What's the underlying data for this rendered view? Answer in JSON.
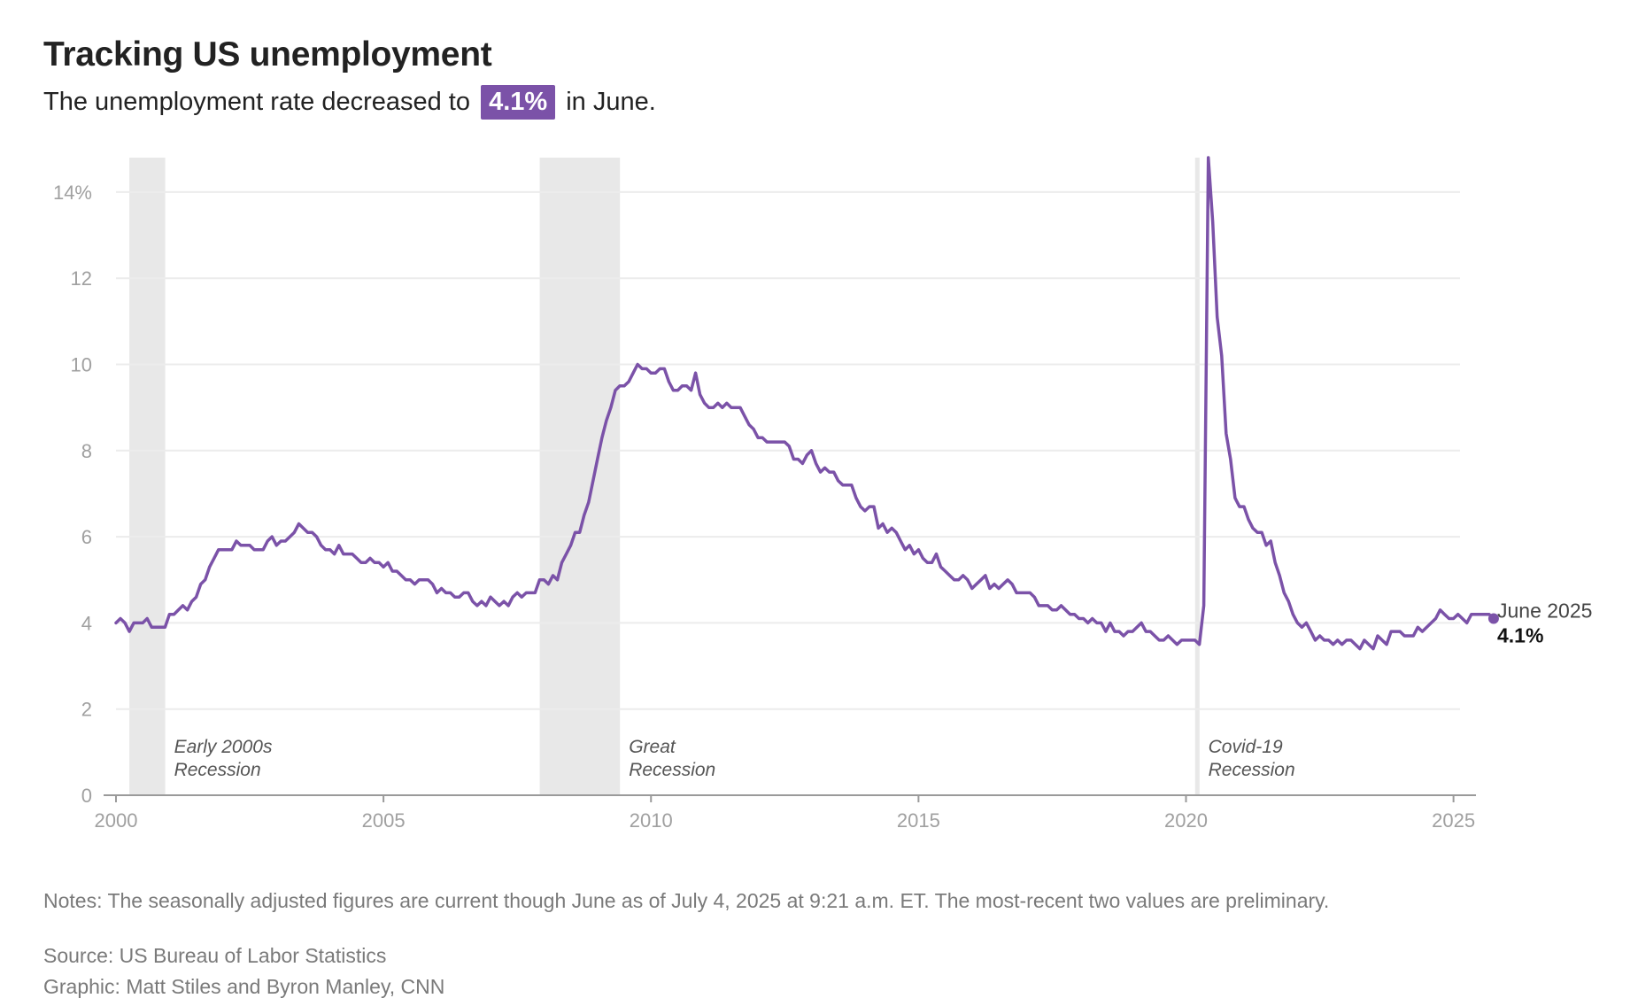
{
  "header": {
    "title": "Tracking US unemployment",
    "subtitle_before": "The unemployment rate decreased to",
    "subtitle_highlight": "4.1%",
    "subtitle_after": "in June."
  },
  "colors": {
    "line": "#7b52a8",
    "highlight": "#7b52a8",
    "recession": "#e8e8e8",
    "grid": "#ececec"
  },
  "chart_data": {
    "type": "line",
    "title": "Tracking US unemployment",
    "xlabel": "",
    "ylabel": "",
    "xlim": [
      2000.0,
      2025.42
    ],
    "ylim": [
      0,
      14.8
    ],
    "y_ticks": [
      0,
      2,
      4,
      6,
      8,
      10,
      12,
      14
    ],
    "y_tick_labels": [
      "0",
      "2",
      "4",
      "6",
      "8",
      "10",
      "12",
      "14%"
    ],
    "x_ticks": [
      2000,
      2005,
      2010,
      2015,
      2020,
      2025
    ],
    "x_tick_labels": [
      "2000",
      "2005",
      "2010",
      "2015",
      "2020",
      "2025"
    ],
    "grid": true,
    "legend": "none",
    "recessions": [
      {
        "start": 2000.25,
        "end": 2000.92,
        "label_line1": "Early 2000s",
        "label_line2": "Recession"
      },
      {
        "start": 2007.92,
        "end": 2009.42,
        "label_line1": "Great",
        "label_line2": "Recession"
      },
      {
        "start": 2020.17,
        "end": 2020.25,
        "label_line1": "Covid-19",
        "label_line2": "Recession"
      }
    ],
    "end_label": {
      "line1": "June 2025",
      "line2": "4.1%"
    },
    "series": [
      {
        "start": 2000.0,
        "step": 0.083333,
        "values": [
          4.0,
          4.1,
          4.0,
          3.8,
          4.0,
          4.0,
          4.0,
          4.1,
          3.9,
          3.9,
          3.9,
          3.9,
          4.2,
          4.2,
          4.3,
          4.4,
          4.3,
          4.5,
          4.6,
          4.9,
          5.0,
          5.3,
          5.5,
          5.7,
          5.7,
          5.7,
          5.7,
          5.9,
          5.8,
          5.8,
          5.8,
          5.7,
          5.7,
          5.7,
          5.9,
          6.0,
          5.8,
          5.9,
          5.9,
          6.0,
          6.1,
          6.3,
          6.2,
          6.1,
          6.1,
          6.0,
          5.8,
          5.7,
          5.7,
          5.6,
          5.8,
          5.6,
          5.6,
          5.6,
          5.5,
          5.4,
          5.4,
          5.5,
          5.4,
          5.4,
          5.3,
          5.4,
          5.2,
          5.2,
          5.1,
          5.0,
          5.0,
          4.9,
          5.0,
          5.0,
          5.0,
          4.9,
          4.7,
          4.8,
          4.7,
          4.7,
          4.6,
          4.6,
          4.7,
          4.7,
          4.5,
          4.4,
          4.5,
          4.4,
          4.6,
          4.5,
          4.4,
          4.5,
          4.4,
          4.6,
          4.7,
          4.6,
          4.7,
          4.7,
          4.7,
          5.0,
          5.0,
          4.9,
          5.1,
          5.0,
          5.4,
          5.6,
          5.8,
          6.1,
          6.1,
          6.5,
          6.8,
          7.3,
          7.8,
          8.3,
          8.7,
          9.0,
          9.4,
          9.5,
          9.5,
          9.6,
          9.8,
          10.0,
          9.9,
          9.9,
          9.8,
          9.8,
          9.9,
          9.9,
          9.6,
          9.4,
          9.4,
          9.5,
          9.5,
          9.4,
          9.8,
          9.3,
          9.1,
          9.0,
          9.0,
          9.1,
          9.0,
          9.1,
          9.0,
          9.0,
          9.0,
          8.8,
          8.6,
          8.5,
          8.3,
          8.3,
          8.2,
          8.2,
          8.2,
          8.2,
          8.2,
          8.1,
          7.8,
          7.8,
          7.7,
          7.9,
          8.0,
          7.7,
          7.5,
          7.6,
          7.5,
          7.5,
          7.3,
          7.2,
          7.2,
          7.2,
          6.9,
          6.7,
          6.6,
          6.7,
          6.7,
          6.2,
          6.3,
          6.1,
          6.2,
          6.1,
          5.9,
          5.7,
          5.8,
          5.6,
          5.7,
          5.5,
          5.4,
          5.4,
          5.6,
          5.3,
          5.2,
          5.1,
          5.0,
          5.0,
          5.1,
          5.0,
          4.8,
          4.9,
          5.0,
          5.1,
          4.8,
          4.9,
          4.8,
          4.9,
          5.0,
          4.9,
          4.7,
          4.7,
          4.7,
          4.7,
          4.6,
          4.4,
          4.4,
          4.4,
          4.3,
          4.3,
          4.4,
          4.3,
          4.2,
          4.2,
          4.1,
          4.1,
          4.0,
          4.1,
          4.0,
          4.0,
          3.8,
          4.0,
          3.8,
          3.8,
          3.7,
          3.8,
          3.8,
          3.9,
          4.0,
          3.8,
          3.8,
          3.7,
          3.6,
          3.6,
          3.7,
          3.6,
          3.5,
          3.6,
          3.6,
          3.6,
          3.6,
          3.5,
          4.4,
          14.8,
          13.3,
          11.1,
          10.2,
          8.4,
          7.8,
          6.9,
          6.7,
          6.7,
          6.4,
          6.2,
          6.1,
          6.1,
          5.8,
          5.9,
          5.4,
          5.1,
          4.7,
          4.5,
          4.2,
          4.0,
          3.9,
          4.0,
          3.8,
          3.6,
          3.7,
          3.6,
          3.6,
          3.5,
          3.6,
          3.5,
          3.6,
          3.6,
          3.5,
          3.4,
          3.6,
          3.5,
          3.4,
          3.7,
          3.6,
          3.5,
          3.8,
          3.8,
          3.8,
          3.7,
          3.7,
          3.7,
          3.9,
          3.8,
          3.9,
          4.0,
          4.1,
          4.3,
          4.2,
          4.1,
          4.1,
          4.2,
          4.1,
          4.0,
          4.2,
          4.2,
          4.2,
          4.2,
          4.2,
          4.1
        ]
      }
    ]
  },
  "footer": {
    "notes": "Notes: The seasonally adjusted figures are current though June as of July 4, 2025 at 9:21 a.m. ET. The most-recent two values are preliminary.",
    "source": "Source: US Bureau of Labor Statistics",
    "credit": "Graphic: Matt Stiles and Byron Manley, CNN"
  }
}
